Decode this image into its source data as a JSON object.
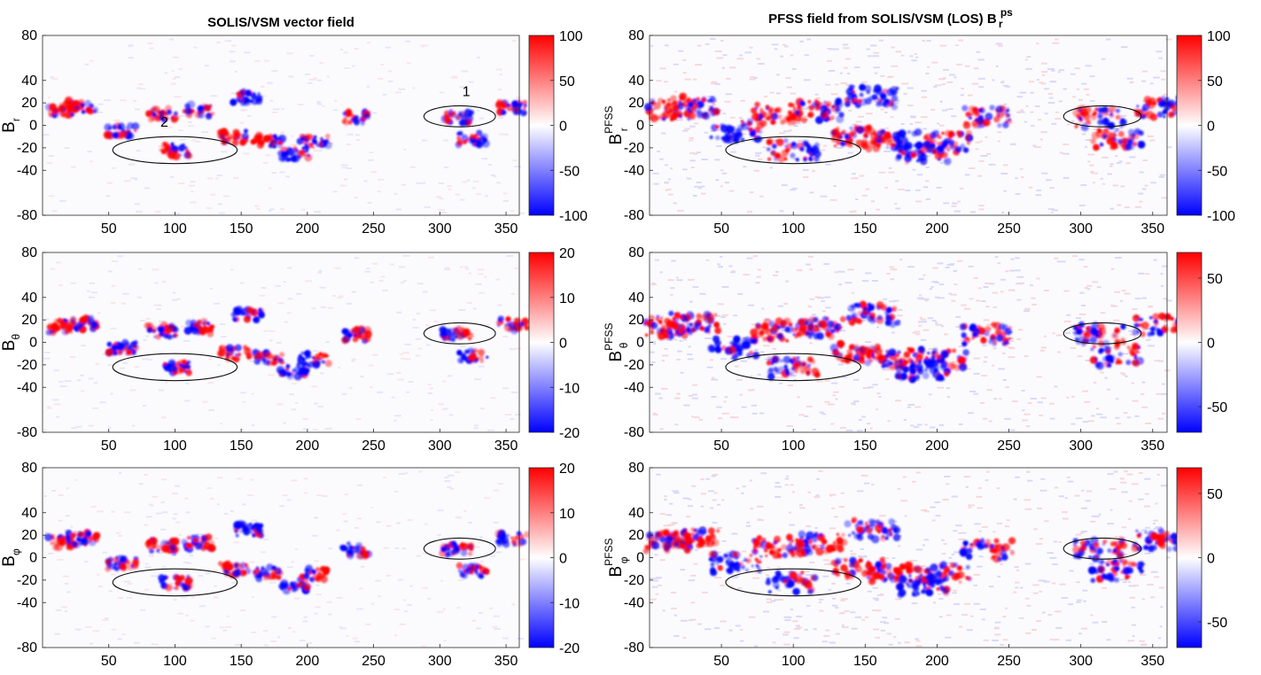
{
  "chart_data": [
    {
      "type": "heatmap",
      "title": "SOLIS/VSM vector field",
      "title_parts": {
        "main": "",
        "sup": "",
        "sub": ""
      },
      "ylabel_parts": {
        "base": "B",
        "sub": "r",
        "sup": ""
      },
      "x_ticks": [
        "50",
        "100",
        "150",
        "200",
        "250",
        "300",
        "350"
      ],
      "y_ticks": [
        "80",
        "40",
        "20",
        "0",
        "-20",
        "-40",
        "-80"
      ],
      "colorbar_ticks": [
        "100",
        "50",
        "0",
        "-50",
        "-100"
      ],
      "ellipse_labels": [
        "1",
        "2"
      ]
    },
    {
      "type": "heatmap",
      "title": "",
      "title_parts": {
        "main": "PFSS field from SOLIS/VSM (LOS) B",
        "sup": "ps",
        "sub": "r"
      },
      "ylabel_parts": {
        "base": "B",
        "sub": "r",
        "sup": "PFSS"
      },
      "x_ticks": [
        "50",
        "100",
        "150",
        "200",
        "250",
        "300",
        "350"
      ],
      "y_ticks": [
        "80",
        "40",
        "20",
        "0",
        "-20",
        "-40",
        "-80"
      ],
      "colorbar_ticks": [
        "100",
        "50",
        "0",
        "-50",
        "-100"
      ],
      "ellipse_labels": []
    },
    {
      "type": "heatmap",
      "title": "",
      "title_parts": {
        "main": "",
        "sup": "",
        "sub": ""
      },
      "ylabel_parts": {
        "base": "B",
        "sub": "θ",
        "sup": ""
      },
      "x_ticks": [
        "50",
        "100",
        "150",
        "200",
        "250",
        "300",
        "350"
      ],
      "y_ticks": [
        "80",
        "40",
        "20",
        "0",
        "-20",
        "-40",
        "-80"
      ],
      "colorbar_ticks": [
        "20",
        "10",
        "0",
        "-10",
        "-20"
      ],
      "ellipse_labels": []
    },
    {
      "type": "heatmap",
      "title": "",
      "title_parts": {
        "main": "",
        "sup": "",
        "sub": ""
      },
      "ylabel_parts": {
        "base": "B",
        "sub": "θ",
        "sup": "PFSS"
      },
      "x_ticks": [
        "50",
        "100",
        "150",
        "200",
        "250",
        "300",
        "350"
      ],
      "y_ticks": [
        "80",
        "40",
        "20",
        "0",
        "-20",
        "-40",
        "-80"
      ],
      "colorbar_ticks": [
        "50",
        "0",
        "-50"
      ],
      "ellipse_labels": []
    },
    {
      "type": "heatmap",
      "title": "",
      "title_parts": {
        "main": "",
        "sup": "",
        "sub": ""
      },
      "ylabel_parts": {
        "base": "B",
        "sub": "φ",
        "sup": ""
      },
      "x_ticks": [
        "50",
        "100",
        "150",
        "200",
        "250",
        "300",
        "350"
      ],
      "y_ticks": [
        "80",
        "40",
        "20",
        "0",
        "-20",
        "-40",
        "-80"
      ],
      "colorbar_ticks": [
        "20",
        "10",
        "0",
        "-10",
        "-20"
      ],
      "ellipse_labels": []
    },
    {
      "type": "heatmap",
      "title": "",
      "title_parts": {
        "main": "",
        "sup": "",
        "sub": ""
      },
      "ylabel_parts": {
        "base": "B",
        "sub": "φ",
        "sup": "PFSS"
      },
      "x_ticks": [
        "50",
        "100",
        "150",
        "200",
        "250",
        "300",
        "350"
      ],
      "y_ticks": [
        "80",
        "40",
        "20",
        "0",
        "-20",
        "-40",
        "-80"
      ],
      "colorbar_ticks": [
        "50",
        "0",
        "-50"
      ],
      "ellipse_labels": []
    }
  ],
  "colors": {
    "positive": "#ff0000",
    "negative": "#0000ff",
    "zero": "#ffffff"
  }
}
